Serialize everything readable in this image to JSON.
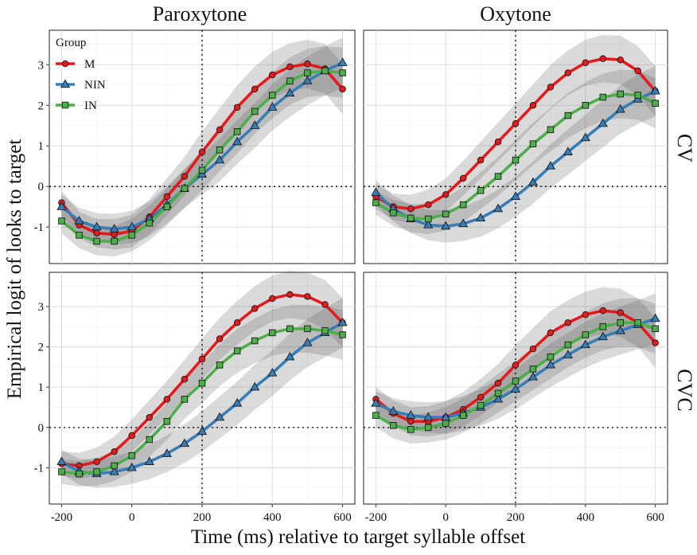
{
  "chart_data": {
    "type": "line",
    "xlabel": "Time (ms) relative to target syllable offset",
    "ylabel": "Empirical logit of looks to target",
    "xlim": [
      -235,
      635
    ],
    "ylim": [
      -1.9,
      3.85
    ],
    "x_ticks": [
      "-200",
      "0",
      "200",
      "400",
      "600"
    ],
    "y_ticks": [
      "-1",
      "0",
      "1",
      "2",
      "3"
    ],
    "grid": true,
    "reference_lines": {
      "vertical_x": 200,
      "horizontal_y": 0
    },
    "column_labels": [
      "Paroxytone",
      "Oxytone"
    ],
    "row_labels": [
      "CV",
      "CVC"
    ],
    "legend": {
      "title": "Group",
      "position": "inside-top-left",
      "entries": [
        {
          "name": "M",
          "color": "#e41a1c",
          "marker": "circle"
        },
        {
          "name": "NIN",
          "color": "#377eb8",
          "marker": "triangle"
        },
        {
          "name": "IN",
          "color": "#4daf4a",
          "marker": "square"
        }
      ]
    },
    "x": [
      -200,
      -150,
      -100,
      -50,
      0,
      50,
      100,
      150,
      200,
      250,
      300,
      350,
      400,
      450,
      500,
      550,
      600
    ],
    "panels": [
      {
        "column": "Paroxytone",
        "row": "CV",
        "series": [
          {
            "name": "M",
            "values": [
              -0.4,
              -0.95,
              -1.15,
              -1.18,
              -1.1,
              -0.75,
              -0.25,
              0.25,
              0.85,
              1.4,
              1.95,
              2.4,
              2.75,
              2.95,
              3.02,
              2.9,
              2.4
            ]
          },
          {
            "name": "NIN",
            "values": [
              -0.5,
              -0.85,
              -1.0,
              -1.05,
              -1.0,
              -0.8,
              -0.45,
              -0.05,
              0.3,
              0.65,
              1.1,
              1.5,
              1.95,
              2.3,
              2.6,
              2.85,
              3.05
            ]
          },
          {
            "name": "IN",
            "values": [
              -0.85,
              -1.2,
              -1.35,
              -1.35,
              -1.2,
              -0.9,
              -0.5,
              -0.05,
              0.4,
              0.9,
              1.35,
              1.85,
              2.25,
              2.6,
              2.8,
              2.85,
              2.8
            ]
          }
        ]
      },
      {
        "column": "Oxytone",
        "row": "CV",
        "series": [
          {
            "name": "M",
            "values": [
              -0.25,
              -0.5,
              -0.55,
              -0.45,
              -0.2,
              0.2,
              0.65,
              1.1,
              1.55,
              2.0,
              2.45,
              2.8,
              3.05,
              3.15,
              3.12,
              2.85,
              2.35
            ]
          },
          {
            "name": "NIN",
            "values": [
              -0.15,
              -0.55,
              -0.8,
              -0.95,
              -0.98,
              -0.92,
              -0.78,
              -0.55,
              -0.25,
              0.1,
              0.5,
              0.85,
              1.2,
              1.55,
              1.9,
              2.15,
              2.35
            ]
          },
          {
            "name": "IN",
            "values": [
              -0.4,
              -0.65,
              -0.78,
              -0.8,
              -0.68,
              -0.45,
              -0.1,
              0.25,
              0.65,
              1.05,
              1.4,
              1.75,
              2.0,
              2.2,
              2.28,
              2.25,
              2.05
            ]
          }
        ]
      },
      {
        "column": "Paroxytone",
        "row": "CVC",
        "series": [
          {
            "name": "M",
            "values": [
              -0.9,
              -0.95,
              -0.85,
              -0.6,
              -0.2,
              0.25,
              0.7,
              1.2,
              1.7,
              2.2,
              2.6,
              2.95,
              3.2,
              3.3,
              3.25,
              3.05,
              2.6
            ]
          },
          {
            "name": "NIN",
            "values": [
              -0.85,
              -1.1,
              -1.15,
              -1.1,
              -1.0,
              -0.85,
              -0.65,
              -0.4,
              -0.1,
              0.25,
              0.6,
              1.0,
              1.35,
              1.75,
              2.1,
              2.35,
              2.6
            ]
          },
          {
            "name": "IN",
            "values": [
              -1.1,
              -1.15,
              -1.1,
              -0.95,
              -0.7,
              -0.3,
              0.15,
              0.7,
              1.1,
              1.55,
              1.9,
              2.15,
              2.35,
              2.45,
              2.45,
              2.4,
              2.3
            ]
          }
        ]
      },
      {
        "column": "Oxytone",
        "row": "CVC",
        "series": [
          {
            "name": "M",
            "values": [
              0.7,
              0.35,
              0.15,
              0.15,
              0.25,
              0.45,
              0.75,
              1.1,
              1.55,
              1.95,
              2.35,
              2.6,
              2.8,
              2.9,
              2.85,
              2.6,
              2.1
            ]
          },
          {
            "name": "NIN",
            "values": [
              0.6,
              0.4,
              0.3,
              0.25,
              0.25,
              0.35,
              0.5,
              0.7,
              0.95,
              1.25,
              1.55,
              1.8,
              2.05,
              2.25,
              2.4,
              2.55,
              2.7
            ]
          },
          {
            "name": "IN",
            "values": [
              0.3,
              0.05,
              -0.05,
              0.0,
              0.1,
              0.3,
              0.55,
              0.85,
              1.15,
              1.45,
              1.75,
              2.05,
              2.3,
              2.5,
              2.6,
              2.6,
              2.45
            ]
          }
        ]
      }
    ]
  }
}
